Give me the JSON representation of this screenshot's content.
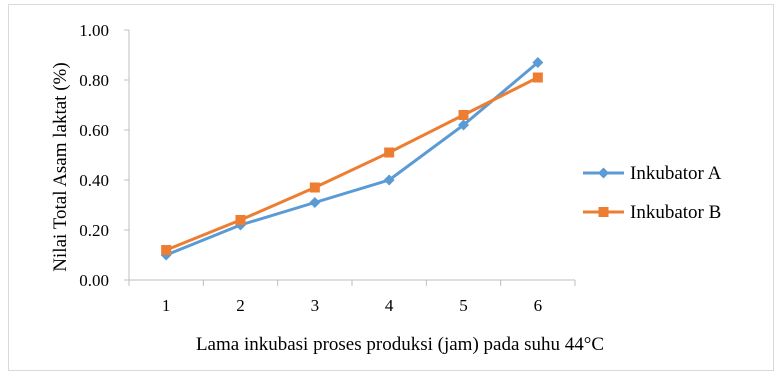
{
  "chart_data": {
    "type": "line",
    "title": "",
    "xlabel": "Lama inkubasi proses produksi (jam)  pada suhu 44°C",
    "ylabel": "Nilai Total Asam laktat (%)",
    "categories": [
      "1",
      "2",
      "3",
      "4",
      "5",
      "6"
    ],
    "ylim": [
      0,
      1.0
    ],
    "yticks": [
      "0.00",
      "0.20",
      "0.40",
      "0.60",
      "0.80",
      "1.00"
    ],
    "grid": false,
    "legend_position": "right",
    "series": [
      {
        "name": "Inkubator A",
        "color": "#5b9bd5",
        "marker": "diamond",
        "values": [
          0.1,
          0.22,
          0.31,
          0.4,
          0.62,
          0.87
        ]
      },
      {
        "name": "Inkubator B",
        "color": "#ed7d31",
        "marker": "square",
        "values": [
          0.12,
          0.24,
          0.37,
          0.51,
          0.66,
          0.81
        ]
      }
    ]
  }
}
